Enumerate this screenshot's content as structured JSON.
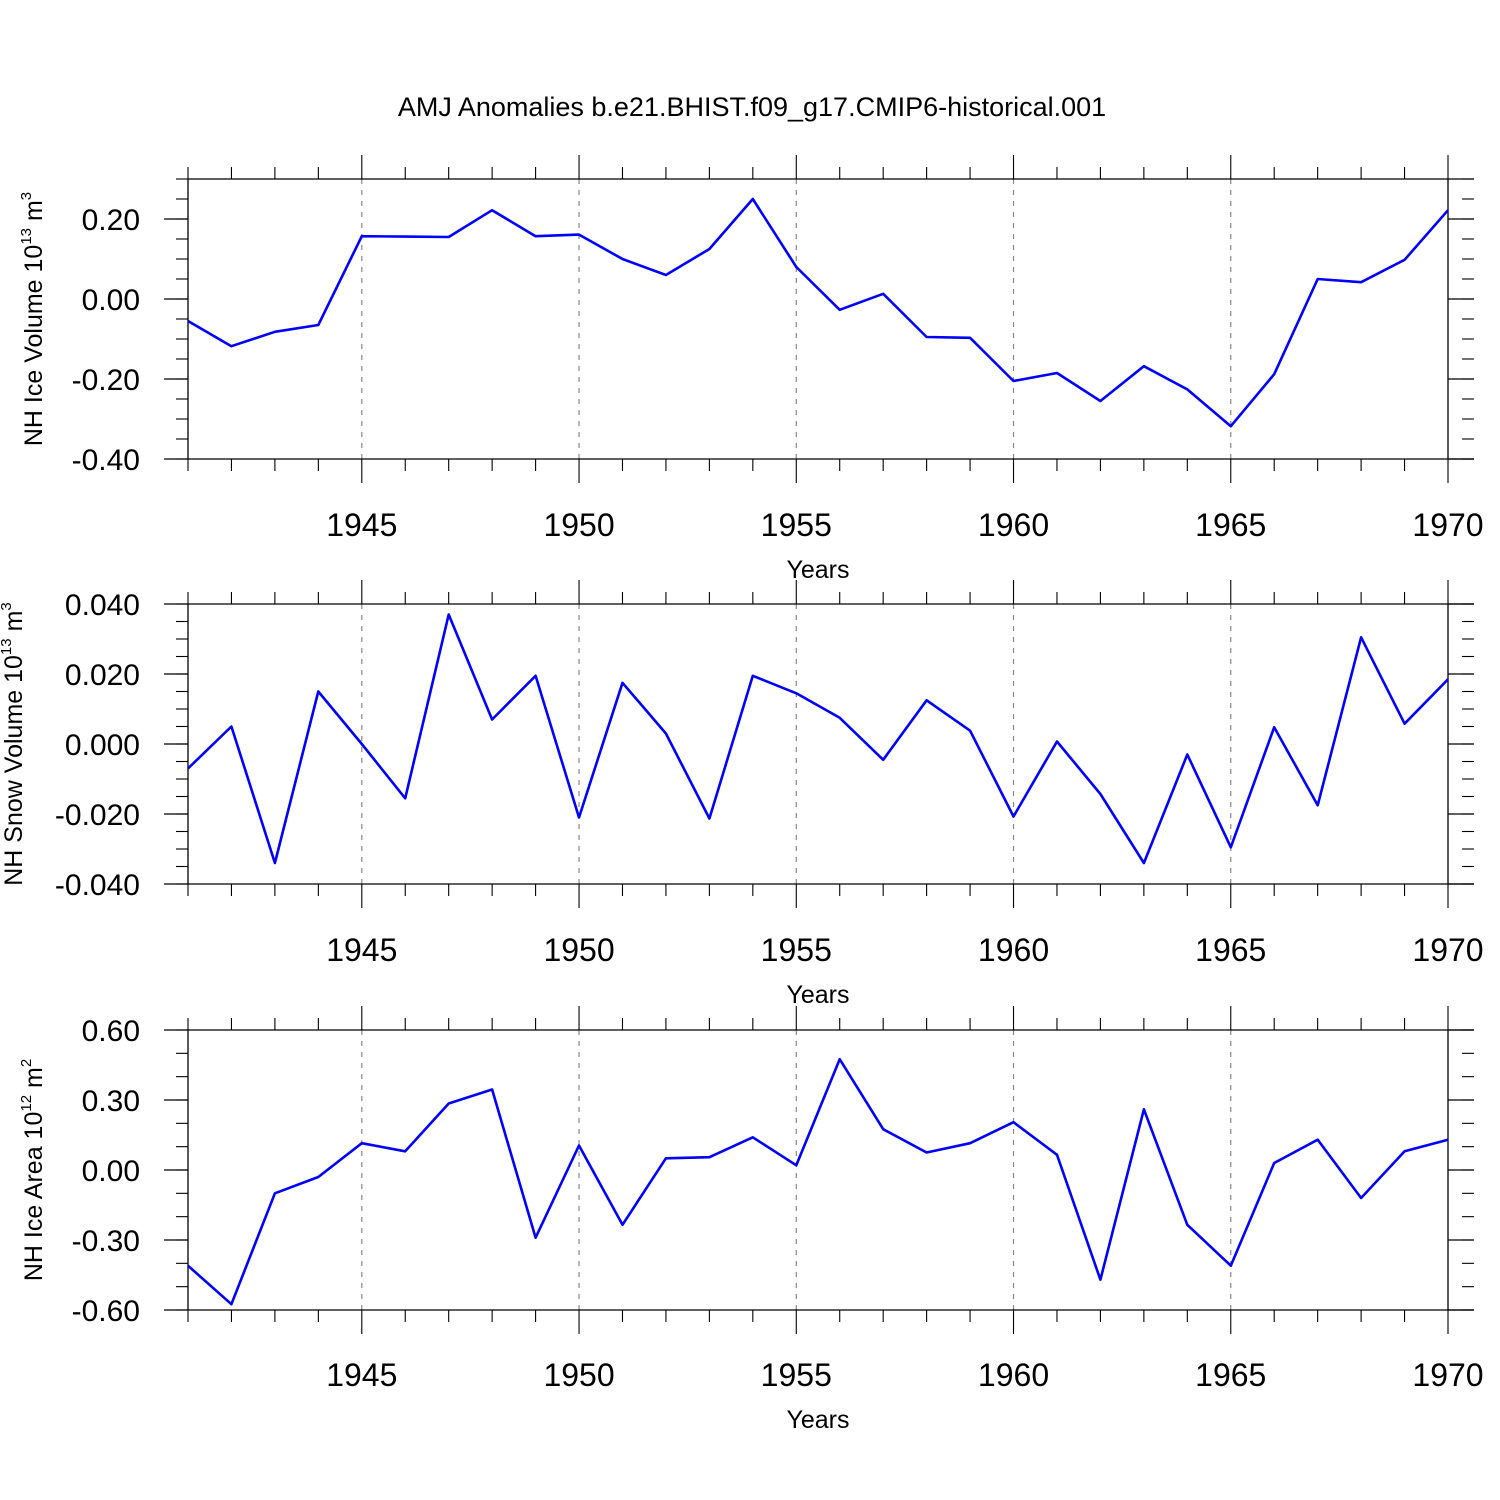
{
  "title": "AMJ Anomalies b.e21.BHIST.f09_g17.CMIP6-historical.001",
  "colors": {
    "line": "#0000ff",
    "frame": "#000000",
    "grid": "#888888"
  },
  "chart_data": [
    {
      "type": "line",
      "xlabel": "Years",
      "ylabel": "NH Ice Volume 10",
      "ylabel_exp": "13",
      "ylabel_unit": "m",
      "ylabel_unit_exp": "3",
      "xlim": [
        1941,
        1970
      ],
      "ylim": [
        -0.4,
        0.3
      ],
      "xticks": [
        1945,
        1950,
        1955,
        1960,
        1965,
        1970
      ],
      "xtick_labels": [
        "1945",
        "1950",
        "1955",
        "1960",
        "1965",
        "1970"
      ],
      "yticks": [
        -0.4,
        -0.2,
        0.0,
        0.2
      ],
      "ytick_labels": [
        "-0.40",
        "-0.20",
        "0.00",
        "0.20"
      ],
      "y_minor_step": 0.05,
      "grid": "vertical dashed at major x ticks",
      "x": [
        1941,
        1942,
        1943,
        1944,
        1945,
        1946,
        1947,
        1948,
        1949,
        1950,
        1951,
        1952,
        1953,
        1954,
        1955,
        1956,
        1957,
        1958,
        1959,
        1960,
        1961,
        1962,
        1963,
        1964,
        1965,
        1966,
        1967,
        1968,
        1969,
        1970
      ],
      "series": [
        {
          "values": [
            -0.055,
            -0.118,
            -0.082,
            -0.065,
            0.157,
            0.156,
            0.155,
            0.222,
            0.157,
            0.161,
            0.1,
            0.06,
            0.125,
            0.25,
            0.08,
            -0.027,
            0.013,
            -0.095,
            -0.097,
            -0.205,
            -0.185,
            -0.255,
            -0.168,
            -0.226,
            -0.318,
            -0.188,
            0.05,
            0.042,
            0.098,
            0.222
          ]
        }
      ]
    },
    {
      "type": "line",
      "xlabel": "Years",
      "ylabel": "NH Snow Volume 10",
      "ylabel_exp": "13",
      "ylabel_unit": "m",
      "ylabel_unit_exp": "3",
      "xlim": [
        1941,
        1970
      ],
      "ylim": [
        -0.04,
        0.04
      ],
      "xticks": [
        1945,
        1950,
        1955,
        1960,
        1965,
        1970
      ],
      "xtick_labels": [
        "1945",
        "1950",
        "1955",
        "1960",
        "1965",
        "1970"
      ],
      "yticks": [
        -0.04,
        -0.02,
        0.0,
        0.02,
        0.04
      ],
      "ytick_labels": [
        "-0.040",
        "-0.020",
        "0.000",
        "0.020",
        "0.040"
      ],
      "y_minor_step": 0.005,
      "grid": "vertical dashed at major x ticks",
      "x": [
        1941,
        1942,
        1943,
        1944,
        1945,
        1946,
        1947,
        1948,
        1949,
        1950,
        1951,
        1952,
        1953,
        1954,
        1955,
        1956,
        1957,
        1958,
        1959,
        1960,
        1961,
        1962,
        1963,
        1964,
        1965,
        1966,
        1967,
        1968,
        1969,
        1970
      ],
      "series": [
        {
          "values": [
            -0.007,
            0.005,
            -0.034,
            0.015,
            0.0,
            -0.0155,
            0.037,
            0.007,
            0.0195,
            -0.021,
            0.0175,
            0.003,
            -0.0213,
            0.0195,
            0.0145,
            0.0075,
            -0.0045,
            0.0125,
            0.0038,
            -0.0207,
            0.0007,
            -0.0143,
            -0.034,
            -0.003,
            -0.0295,
            0.0048,
            -0.0175,
            0.0305,
            0.0058,
            0.0185
          ]
        }
      ]
    },
    {
      "type": "line",
      "xlabel": "Years",
      "ylabel": "NH Ice Area 10",
      "ylabel_exp": "12",
      "ylabel_unit": "m",
      "ylabel_unit_exp": "2",
      "xlim": [
        1941,
        1970
      ],
      "ylim": [
        -0.6,
        0.6
      ],
      "xticks": [
        1945,
        1950,
        1955,
        1960,
        1965,
        1970
      ],
      "xtick_labels": [
        "1945",
        "1950",
        "1955",
        "1960",
        "1965",
        "1970"
      ],
      "yticks": [
        -0.6,
        -0.3,
        0.0,
        0.3,
        0.6
      ],
      "ytick_labels": [
        "-0.60",
        "-0.30",
        "0.00",
        "0.30",
        "0.60"
      ],
      "y_minor_step": 0.1,
      "grid": "vertical dashed at major x ticks",
      "x": [
        1941,
        1942,
        1943,
        1944,
        1945,
        1946,
        1947,
        1948,
        1949,
        1950,
        1951,
        1952,
        1953,
        1954,
        1955,
        1956,
        1957,
        1958,
        1959,
        1960,
        1961,
        1962,
        1963,
        1964,
        1965,
        1966,
        1967,
        1968,
        1969,
        1970
      ],
      "series": [
        {
          "values": [
            -0.41,
            -0.575,
            -0.1,
            -0.03,
            0.115,
            0.08,
            0.285,
            0.345,
            -0.29,
            0.105,
            -0.235,
            0.05,
            0.055,
            0.14,
            0.02,
            0.475,
            0.175,
            0.075,
            0.115,
            0.205,
            0.065,
            -0.47,
            0.26,
            -0.235,
            -0.41,
            0.03,
            0.13,
            -0.12,
            0.08,
            0.13
          ]
        }
      ]
    }
  ]
}
